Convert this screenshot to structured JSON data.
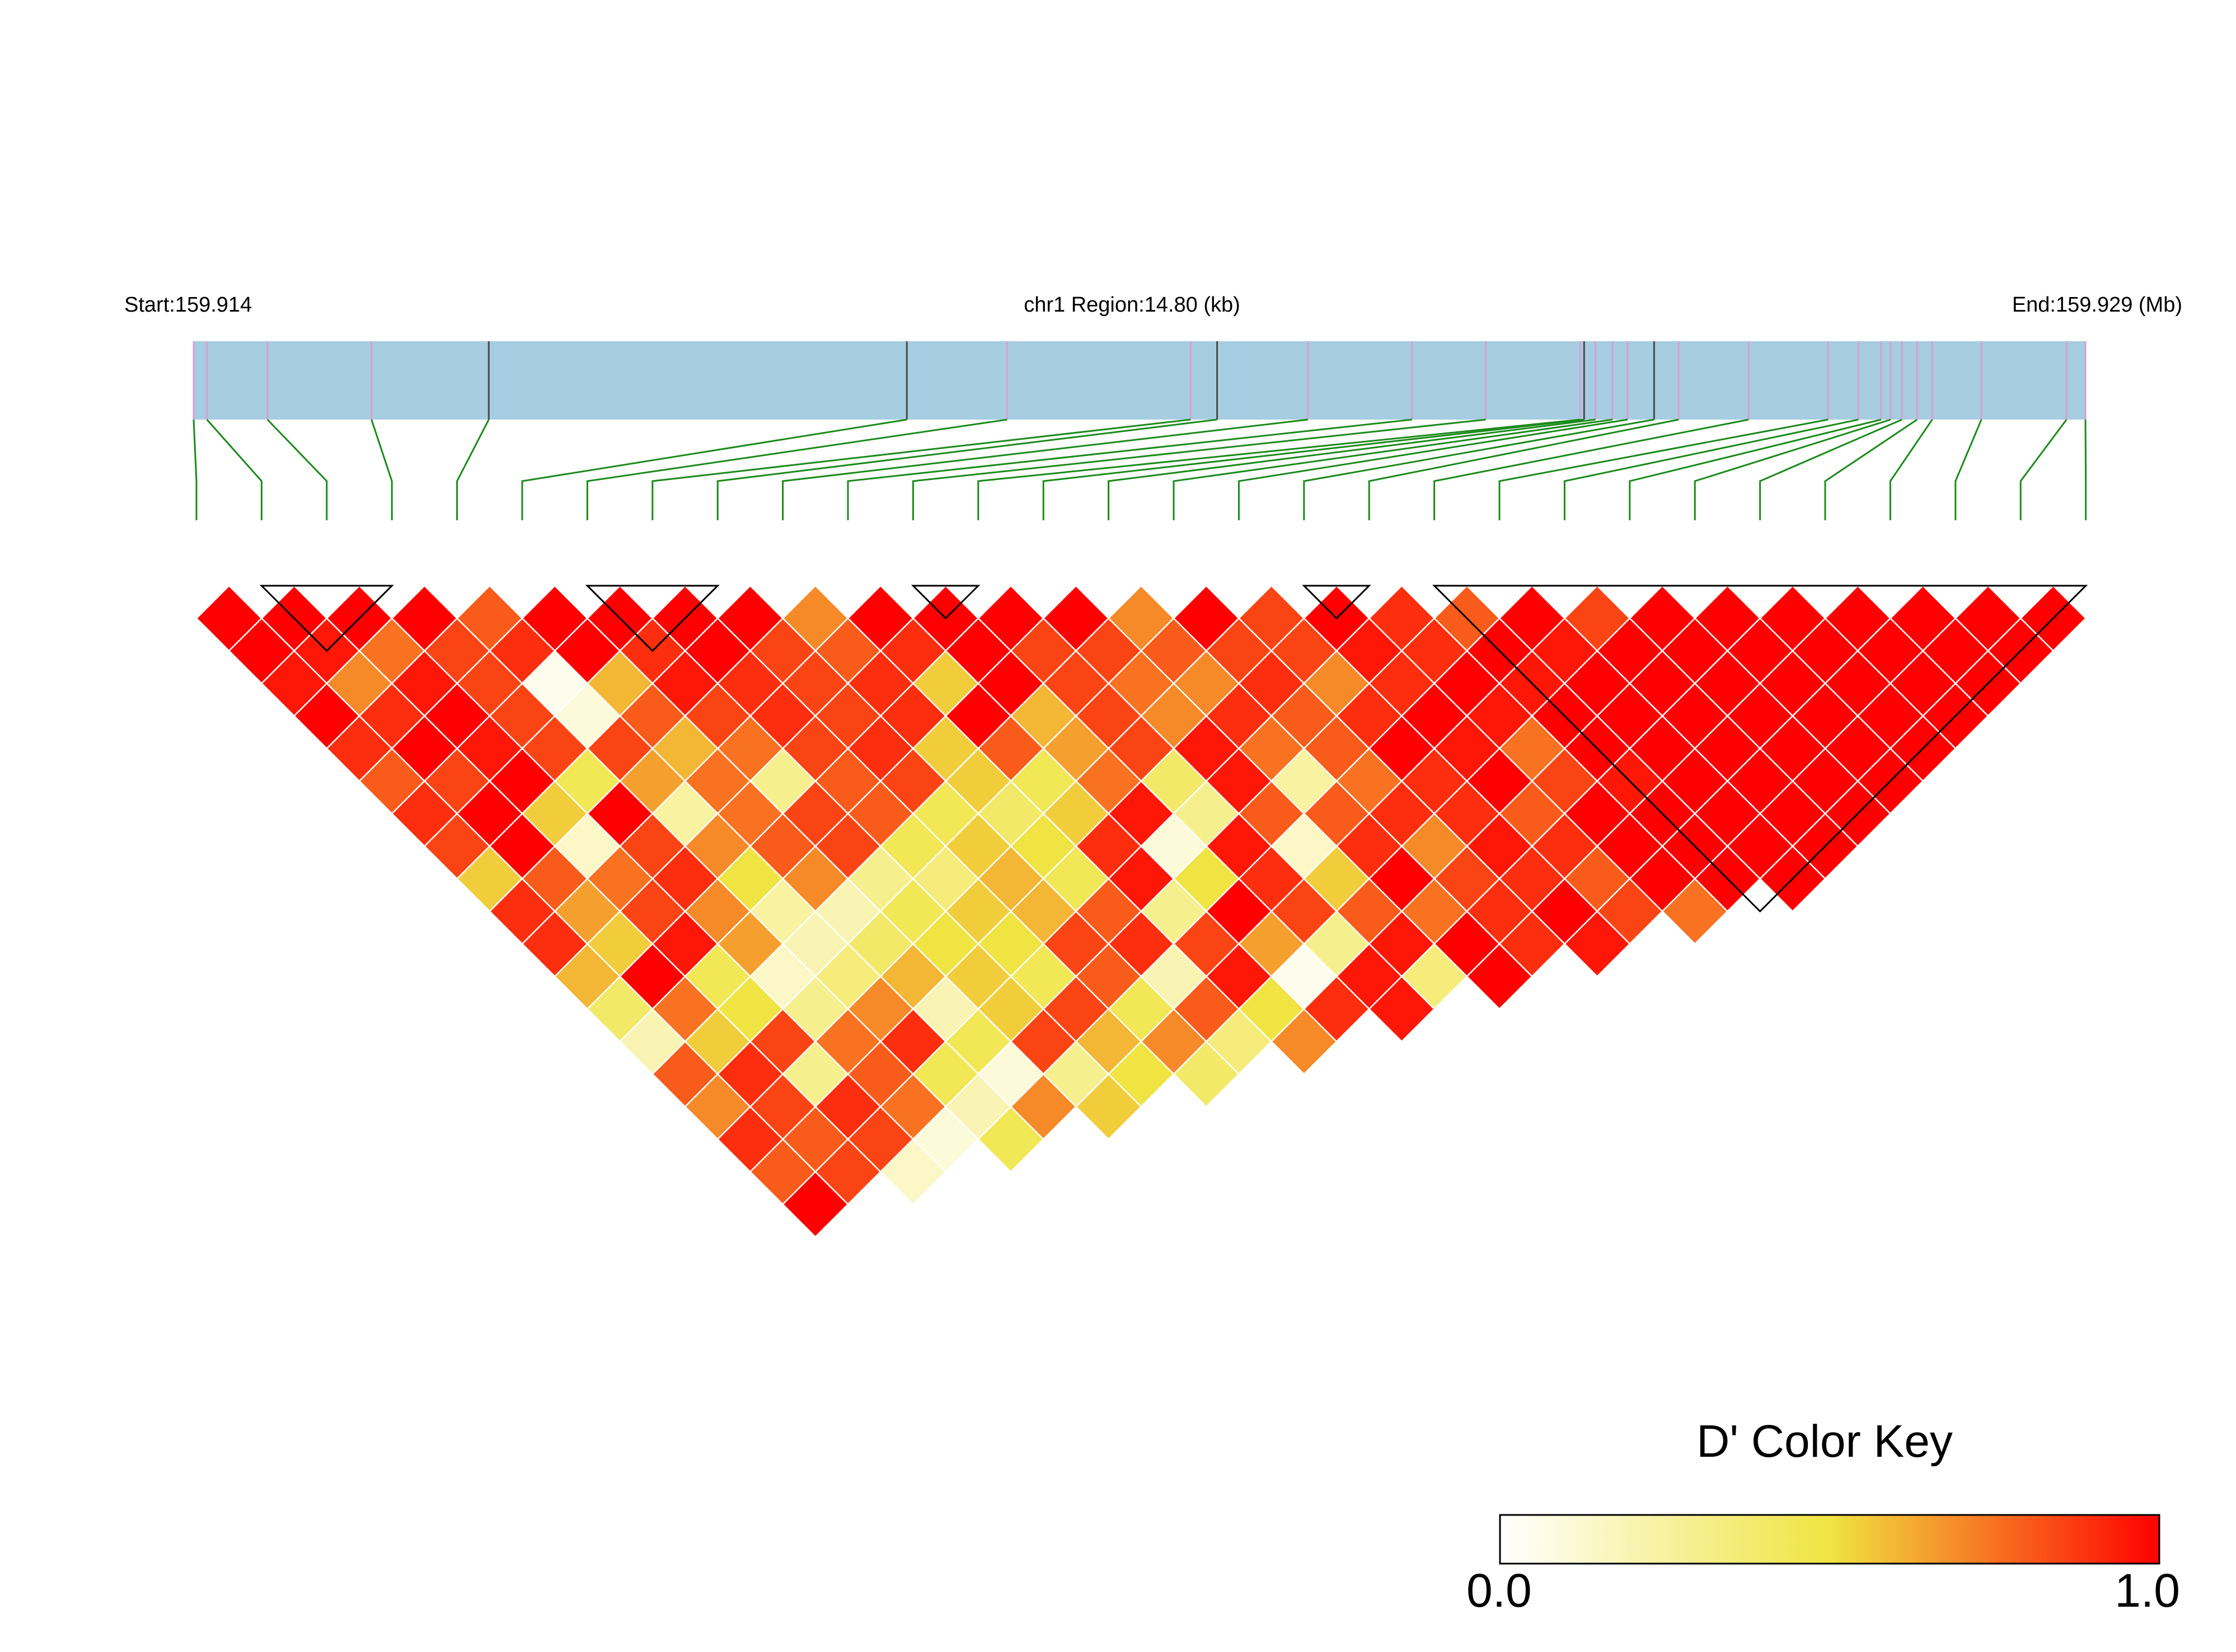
{
  "header": {
    "start_label": "Start:159.914",
    "region_label": "chr1 Region:14.80 (kb)",
    "end_label": "End:159.929 (Mb)"
  },
  "colors": {
    "track_fill": "#a6cde1",
    "snp_tick": "#d99fd0",
    "gene_tick": "#4a4a4a",
    "connector": "#1a8a1a",
    "block_outline": "#000000",
    "cell_border": "#ffffff",
    "scale_low": "#ffffff",
    "scale_mid": "#f0e442",
    "scale_high": "#ff0000"
  },
  "color_key": {
    "title": "D' Color Key",
    "min_label": "0.0",
    "max_label": "1.0"
  },
  "chart_data": {
    "type": "heatmap",
    "description_metric": "D'",
    "n_snps": 30,
    "region": {
      "chrom": "chr1",
      "start_mb": 159.914,
      "end_mb": 159.929,
      "length_kb": 14.8
    },
    "snp_fraction_positions": [
      0.0,
      0.007,
      0.039,
      0.094,
      0.156,
      0.377,
      0.43,
      0.527,
      0.541,
      0.589,
      0.644,
      0.683,
      0.733,
      0.735,
      0.741,
      0.75,
      0.758,
      0.772,
      0.785,
      0.822,
      0.864,
      0.88,
      0.892,
      0.897,
      0.903,
      0.911,
      0.919,
      0.945,
      0.99,
      1.0
    ],
    "black_ticks": [
      4,
      5,
      8,
      13,
      17
    ],
    "ld_blocks": [
      [
        1,
        3
      ],
      [
        6,
        8
      ],
      [
        11,
        12
      ],
      [
        17,
        18
      ],
      [
        19,
        29
      ]
    ],
    "dprime_rows_by_distance": [
      [
        1.0,
        1.0,
        1.0,
        1.0,
        0.8,
        1.0,
        1.0,
        1.0,
        1.0,
        0.7,
        1.0,
        1.0,
        1.0,
        1.0,
        0.7,
        1.0,
        0.85,
        1.0,
        0.9,
        0.8,
        1.0,
        0.85,
        1.0,
        1.0,
        1.0,
        1.0,
        1.0,
        1.0,
        1.0
      ],
      [
        1.0,
        0.95,
        0.75,
        0.85,
        0.9,
        1.0,
        0.9,
        1.0,
        0.85,
        0.8,
        0.9,
        1.0,
        0.85,
        0.85,
        0.8,
        0.85,
        0.85,
        0.95,
        0.9,
        1.0,
        0.95,
        1.0,
        1.0,
        1.0,
        1.0,
        1.0,
        1.0,
        1.0
      ],
      [
        0.95,
        0.7,
        0.95,
        0.85,
        0.05,
        0.6,
        0.95,
        0.9,
        0.85,
        0.9,
        0.55,
        1.0,
        0.85,
        0.75,
        0.7,
        0.9,
        0.7,
        0.9,
        1.0,
        0.95,
        1.0,
        1.0,
        1.0,
        1.0,
        1.0,
        1.0,
        1.0
      ],
      [
        1.0,
        0.9,
        1.0,
        0.85,
        0.1,
        0.8,
        0.85,
        0.9,
        0.85,
        0.9,
        1.0,
        0.6,
        0.85,
        0.7,
        0.9,
        0.8,
        0.9,
        1.0,
        0.95,
        1.0,
        1.0,
        1.0,
        1.0,
        1.0,
        1.0,
        1.0
      ],
      [
        0.9,
        1.0,
        0.95,
        0.85,
        0.85,
        0.6,
        0.75,
        0.85,
        0.9,
        0.55,
        0.8,
        0.65,
        0.85,
        0.95,
        0.75,
        0.8,
        1.0,
        0.95,
        0.75,
        1.0,
        1.0,
        1.0,
        1.0,
        1.0,
        1.0
      ],
      [
        0.8,
        0.85,
        1.0,
        0.45,
        0.65,
        0.75,
        0.3,
        0.8,
        0.85,
        0.55,
        0.45,
        0.75,
        0.4,
        0.95,
        0.25,
        0.75,
        0.9,
        1.0,
        0.85,
        0.95,
        1.0,
        1.0,
        1.0,
        1.0
      ],
      [
        0.9,
        1.0,
        0.55,
        1.0,
        0.25,
        0.75,
        0.85,
        0.8,
        0.45,
        0.4,
        0.55,
        0.95,
        0.3,
        0.8,
        0.8,
        0.9,
        0.9,
        0.8,
        1.0,
        1.0,
        1.0,
        1.0,
        1.0
      ],
      [
        0.85,
        1.0,
        0.15,
        0.85,
        0.7,
        0.8,
        0.85,
        0.45,
        0.55,
        0.5,
        0.9,
        0.1,
        0.95,
        0.15,
        0.9,
        0.7,
        0.95,
        0.9,
        1.0,
        1.0,
        1.0,
        1.0
      ],
      [
        0.55,
        0.8,
        0.75,
        0.9,
        0.5,
        0.7,
        0.3,
        0.35,
        0.6,
        0.45,
        0.95,
        0.5,
        0.9,
        0.55,
        1.0,
        0.85,
        0.9,
        0.8,
        1.0,
        1.0,
        1.0
      ],
      [
        0.9,
        0.65,
        0.85,
        0.7,
        0.25,
        0.2,
        0.45,
        0.55,
        0.6,
        0.8,
        0.3,
        1.0,
        0.85,
        0.8,
        0.75,
        0.9,
        1.0,
        0.85,
        0.75
      ],
      [
        0.9,
        0.55,
        0.95,
        0.65,
        0.2,
        0.4,
        0.5,
        0.5,
        0.85,
        0.9,
        0.85,
        0.65,
        0.3,
        0.95,
        1.0,
        0.9,
        0.95
      ],
      [
        0.6,
        1.0,
        0.45,
        0.15,
        0.35,
        0.6,
        0.55,
        0.45,
        0.8,
        0.2,
        0.95,
        0.05,
        0.95,
        0.35,
        1.0
      ],
      [
        0.4,
        0.75,
        0.5,
        0.3,
        0.7,
        0.2,
        0.55,
        0.85,
        0.45,
        0.8,
        0.5,
        0.9,
        0.95
      ],
      [
        0.2,
        0.55,
        0.85,
        0.75,
        0.9,
        0.45,
        0.85,
        0.6,
        0.7,
        0.35,
        0.7
      ],
      [
        0.8,
        0.9,
        0.3,
        0.8,
        0.45,
        0.1,
        0.3,
        0.5,
        0.4
      ],
      [
        0.7,
        0.85,
        0.9,
        0.75,
        0.2,
        0.7,
        0.55
      ],
      [
        0.9,
        0.8,
        0.85,
        0.1,
        0.45
      ],
      [
        0.8,
        0.85,
        0.15
      ],
      [
        1.0
      ]
    ]
  }
}
